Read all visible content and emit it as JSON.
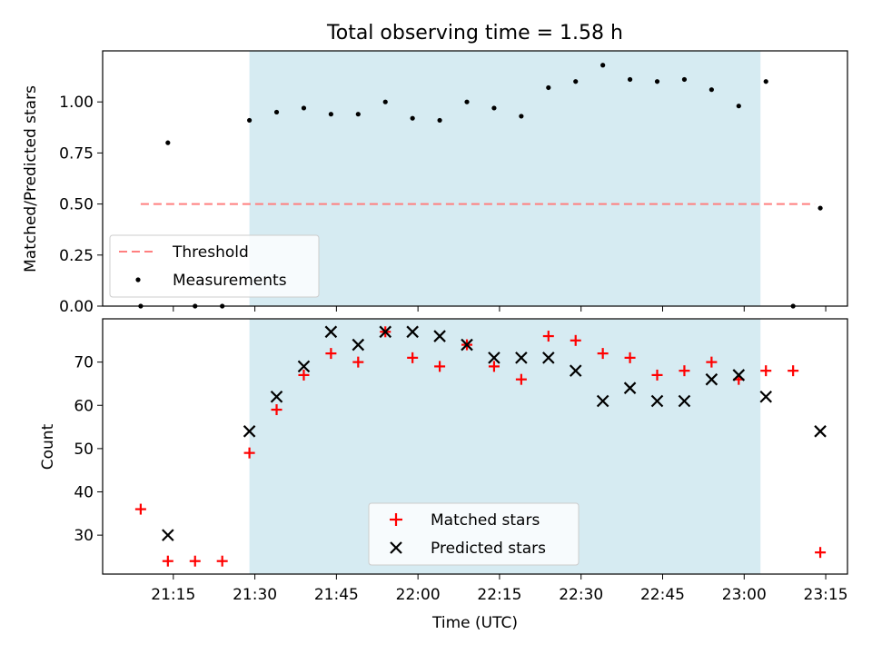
{
  "chart_data": [
    {
      "type": "scatter",
      "title": "Total observing time = 1.58 h",
      "xlabel": "",
      "ylabel": "Matched/Predicted stars",
      "xlim": [
        "21:02",
        "23:19"
      ],
      "ylim": [
        0,
        1.25
      ],
      "yticks": [
        "0.00",
        "0.25",
        "0.50",
        "0.75",
        "1.00"
      ],
      "shaded_span": {
        "start": "21:29",
        "end": "23:03",
        "color": "#add8e6"
      },
      "threshold": {
        "name": "Threshold",
        "y": 0.5,
        "x_start": "21:09",
        "x_end": "23:13",
        "color": "#ff7f7f"
      },
      "series": [
        {
          "name": "Measurements",
          "color": "#000000",
          "points": [
            [
              "21:09",
              0.0
            ],
            [
              "21:14",
              0.8
            ],
            [
              "21:19",
              0.0
            ],
            [
              "21:24",
              0.0
            ],
            [
              "21:29",
              0.91
            ],
            [
              "21:34",
              0.95
            ],
            [
              "21:39",
              0.97
            ],
            [
              "21:44",
              0.94
            ],
            [
              "21:49",
              0.94
            ],
            [
              "21:54",
              1.0
            ],
            [
              "21:59",
              0.92
            ],
            [
              "22:04",
              0.91
            ],
            [
              "22:09",
              1.0
            ],
            [
              "22:14",
              0.97
            ],
            [
              "22:19",
              0.93
            ],
            [
              "22:24",
              1.07
            ],
            [
              "22:29",
              1.1
            ],
            [
              "22:34",
              1.18
            ],
            [
              "22:39",
              1.11
            ],
            [
              "22:44",
              1.1
            ],
            [
              "22:49",
              1.11
            ],
            [
              "22:54",
              1.06
            ],
            [
              "22:59",
              0.98
            ],
            [
              "23:04",
              1.1
            ],
            [
              "23:09",
              0.0
            ],
            [
              "23:14",
              0.48
            ]
          ]
        }
      ],
      "legend": {
        "placement": "lower-left",
        "entries": [
          "Threshold",
          "Measurements"
        ]
      }
    },
    {
      "type": "scatter",
      "title": "",
      "xlabel": "Time (UTC)",
      "ylabel": "Count",
      "xlim": [
        "21:02",
        "23:19"
      ],
      "ylim": [
        21,
        80
      ],
      "yticks": [
        "30",
        "40",
        "50",
        "60",
        "70"
      ],
      "xticks": [
        "21:15",
        "21:30",
        "21:45",
        "22:00",
        "22:15",
        "22:30",
        "22:45",
        "23:00",
        "23:15"
      ],
      "shaded_span": {
        "start": "21:29",
        "end": "23:03",
        "color": "#add8e6"
      },
      "series": [
        {
          "name": "Matched stars",
          "marker": "plus",
          "color": "#ff0000",
          "points": [
            [
              "21:09",
              36
            ],
            [
              "21:14",
              24
            ],
            [
              "21:19",
              24
            ],
            [
              "21:24",
              24
            ],
            [
              "21:29",
              49
            ],
            [
              "21:34",
              59
            ],
            [
              "21:39",
              67
            ],
            [
              "21:44",
              72
            ],
            [
              "21:49",
              70
            ],
            [
              "21:54",
              77
            ],
            [
              "21:59",
              71
            ],
            [
              "22:04",
              69
            ],
            [
              "22:09",
              74
            ],
            [
              "22:14",
              69
            ],
            [
              "22:19",
              66
            ],
            [
              "22:24",
              76
            ],
            [
              "22:29",
              75
            ],
            [
              "22:34",
              72
            ],
            [
              "22:39",
              71
            ],
            [
              "22:44",
              67
            ],
            [
              "22:49",
              68
            ],
            [
              "22:54",
              70
            ],
            [
              "22:59",
              66
            ],
            [
              "23:04",
              68
            ],
            [
              "23:09",
              68
            ],
            [
              "23:14",
              26
            ]
          ]
        },
        {
          "name": "Predicted stars",
          "marker": "x",
          "color": "#000000",
          "points": [
            [
              "21:14",
              30
            ],
            [
              "21:29",
              54
            ],
            [
              "21:34",
              62
            ],
            [
              "21:39",
              69
            ],
            [
              "21:44",
              77
            ],
            [
              "21:49",
              74
            ],
            [
              "21:54",
              77
            ],
            [
              "21:59",
              77
            ],
            [
              "22:04",
              76
            ],
            [
              "22:09",
              74
            ],
            [
              "22:14",
              71
            ],
            [
              "22:19",
              71
            ],
            [
              "22:24",
              71
            ],
            [
              "22:29",
              68
            ],
            [
              "22:34",
              61
            ],
            [
              "22:39",
              64
            ],
            [
              "22:44",
              61
            ],
            [
              "22:49",
              61
            ],
            [
              "22:54",
              66
            ],
            [
              "22:59",
              67
            ],
            [
              "23:04",
              62
            ],
            [
              "23:14",
              54
            ]
          ]
        }
      ],
      "legend": {
        "placement": "lower-center",
        "entries": [
          "Matched stars",
          "Predicted stars"
        ]
      }
    }
  ]
}
